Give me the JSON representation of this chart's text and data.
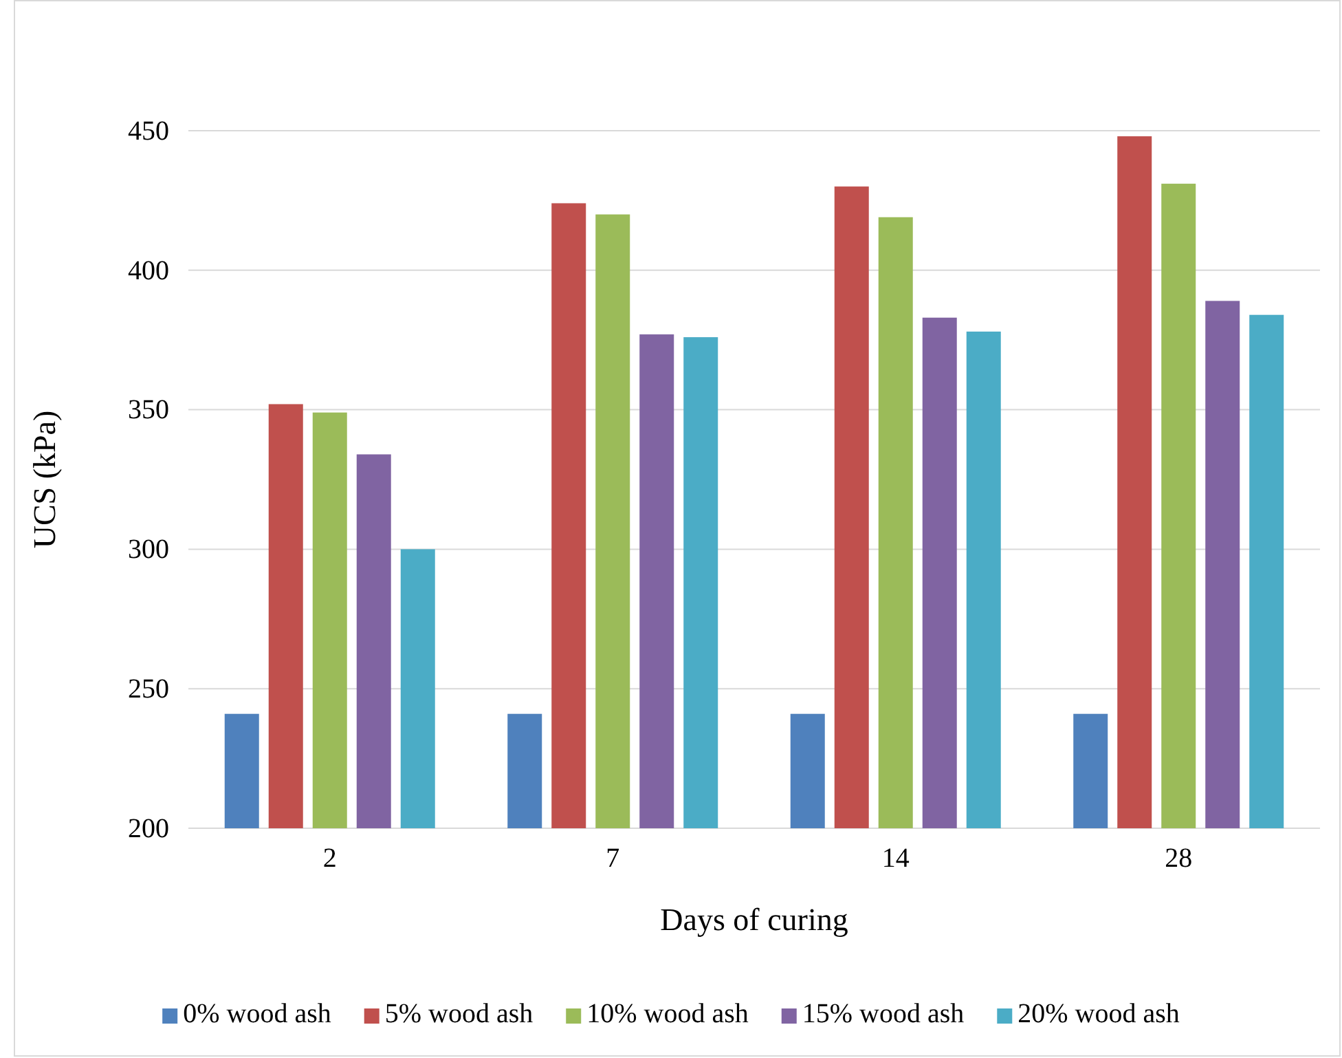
{
  "chart_data": {
    "type": "bar",
    "xlabel": "Days of curing",
    "ylabel": "UCS (kPa)",
    "categories": [
      "2",
      "7",
      "14",
      "28"
    ],
    "series": [
      {
        "name": "0% wood ash",
        "color": "#4f81bd",
        "values": [
          241,
          241,
          241,
          241
        ]
      },
      {
        "name": "5% wood ash",
        "color": "#c0504d",
        "values": [
          352,
          424,
          430,
          448
        ]
      },
      {
        "name": "10% wood ash",
        "color": "#9bbb59",
        "values": [
          349,
          420,
          419,
          431
        ]
      },
      {
        "name": "15% wood ash",
        "color": "#8064a2",
        "values": [
          334,
          377,
          383,
          389
        ]
      },
      {
        "name": "20% wood ash",
        "color": "#4bacc6",
        "values": [
          300,
          376,
          378,
          384
        ]
      }
    ],
    "ylim": [
      200,
      450
    ],
    "yticks": [
      200,
      250,
      300,
      350,
      400,
      450
    ],
    "grid": "y",
    "legend": "bottom"
  }
}
